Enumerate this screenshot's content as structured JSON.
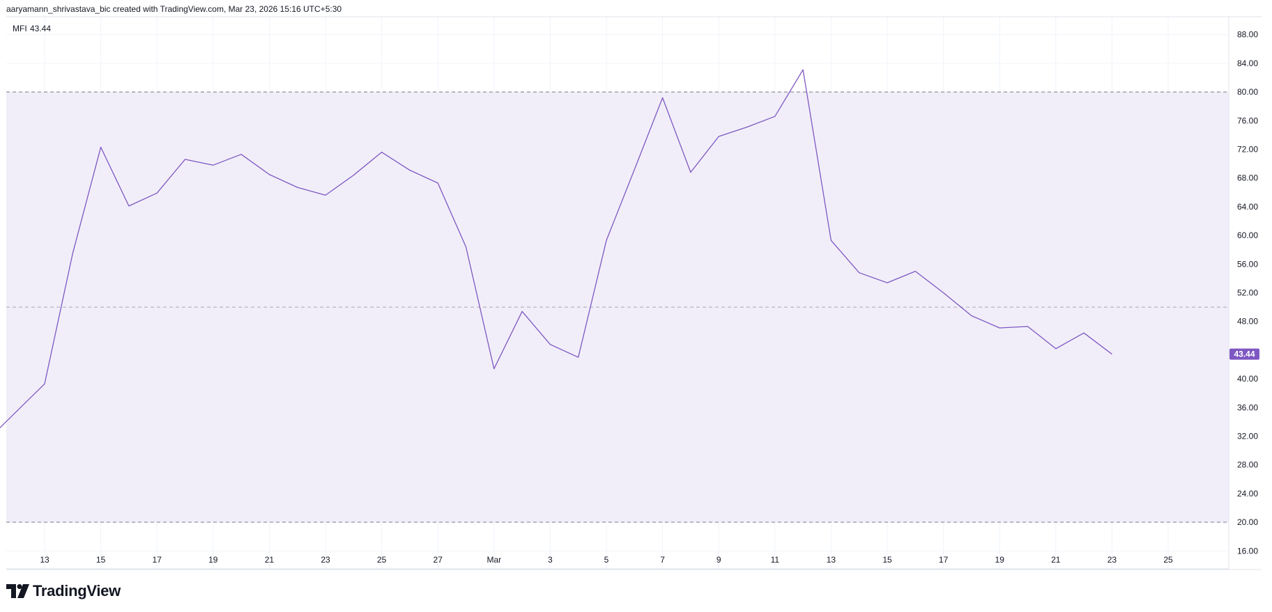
{
  "header": {
    "attribution": "aaryamann_shrivastava_bic created with TradingView.com, Mar 23, 2026 15:16 UTC+5:30"
  },
  "indicator": {
    "name": "MFI",
    "value": "43.44"
  },
  "footer": {
    "brand": "TradingView"
  },
  "colors": {
    "line": "#7e57c2",
    "band_fill": "#efebf8",
    "label_bg": "#7e57c2",
    "dash": "#787b86",
    "grid": "#f0f3fa"
  },
  "chart_data": {
    "type": "line",
    "title": "MFI",
    "ylim": [
      13.5,
      90.5
    ],
    "y_ticks": [
      "88.00",
      "84.00",
      "80.00",
      "76.00",
      "72.00",
      "68.00",
      "64.00",
      "60.00",
      "56.00",
      "52.00",
      "48.00",
      "40.00",
      "36.00",
      "32.00",
      "28.00",
      "24.00",
      "20.00",
      "16.00"
    ],
    "x_ticks": [
      "13",
      "15",
      "17",
      "19",
      "21",
      "23",
      "25",
      "27",
      "Mar",
      "3",
      "5",
      "7",
      "9",
      "11",
      "13",
      "15",
      "17",
      "19",
      "21",
      "23",
      "25"
    ],
    "bands": {
      "upper": 80,
      "middle": 50,
      "lower": 20
    },
    "last_value_label": "43.44",
    "series": [
      {
        "x": [
          "Feb 11",
          "Feb 13",
          "Feb 14",
          "Feb 15",
          "Feb 16",
          "Feb 17",
          "Feb 18",
          "Feb 19",
          "Feb 20",
          "Feb 21",
          "Feb 22",
          "Feb 23",
          "Feb 24",
          "Feb 25",
          "Feb 26",
          "Feb 27",
          "Feb 28",
          "Mar 1",
          "Mar 2",
          "Mar 3",
          "Mar 4",
          "Mar 5",
          "Mar 6",
          "Mar 7",
          "Mar 8",
          "Mar 9",
          "Mar 10",
          "Mar 11",
          "Mar 12",
          "Mar 13",
          "Mar 14",
          "Mar 15",
          "Mar 16",
          "Mar 17",
          "Mar 18",
          "Mar 19",
          "Mar 20",
          "Mar 21",
          "Mar 22",
          "Mar 23"
        ],
        "values": [
          31.6,
          39.3,
          57.5,
          72.3,
          64.1,
          65.9,
          70.6,
          69.8,
          71.3,
          68.5,
          66.7,
          65.6,
          68.4,
          71.6,
          69.1,
          67.3,
          58.4,
          41.4,
          49.4,
          44.8,
          43.0,
          59.3,
          69.2,
          79.2,
          68.8,
          73.8,
          75.1,
          76.6,
          83.1,
          59.3,
          54.8,
          53.4,
          55.0,
          52.0,
          48.8,
          47.1,
          47.3,
          44.2,
          46.4,
          43.44
        ]
      }
    ]
  }
}
